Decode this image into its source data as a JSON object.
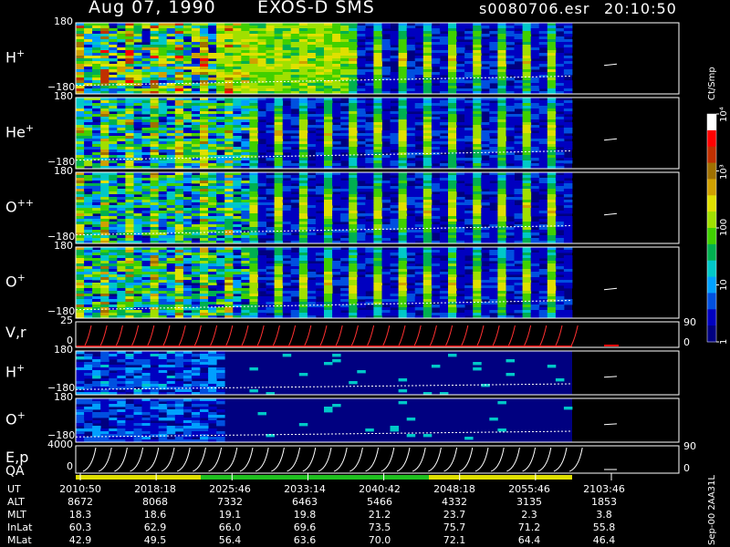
{
  "header": {
    "date": "Aug 07, 1990",
    "instrument": "EXOS-D SMS",
    "file": "s0080706.esr",
    "time": "20:10:50"
  },
  "panels": [
    {
      "id": "h_plus",
      "ion": "H",
      "charge": "+",
      "ytop": "180",
      "ybot": "−180"
    },
    {
      "id": "he_plus",
      "ion": "He",
      "charge": "+",
      "ytop": "180",
      "ybot": "−180"
    },
    {
      "id": "o_pp",
      "ion": "O",
      "charge": "++",
      "ytop": "180",
      "ybot": "−180"
    },
    {
      "id": "o_plus",
      "ion": "O",
      "charge": "+",
      "ytop": "180",
      "ybot": "−180"
    },
    {
      "id": "vr",
      "ion": "V,r",
      "charge": "",
      "ytop": "25",
      "ybot": "0",
      "right_top": "90",
      "right_bot": "0"
    },
    {
      "id": "h_plus2",
      "ion": "H",
      "charge": "+",
      "ytop": "180",
      "ybot": "−180"
    },
    {
      "id": "o_plus2",
      "ion": "O",
      "charge": "+",
      "ytop": "180",
      "ybot": "−180"
    },
    {
      "id": "ep",
      "ion": "E,p",
      "charge": "",
      "ytop": "4000",
      "ybot": "0",
      "right_top": "90",
      "right_bot": "0"
    }
  ],
  "qa_label": "QA",
  "colorbar": {
    "label": "Ct/Smp",
    "ticks": [
      {
        "text": "1",
        "level": 0
      },
      {
        "text": "10",
        "level": 0.25
      },
      {
        "text": "100",
        "level": 0.5
      },
      {
        "text": "10³",
        "level": 0.75
      },
      {
        "text": "10⁴",
        "level": 1.0
      }
    ],
    "colors": [
      "#000080",
      "#0000c0",
      "#0050e0",
      "#00a0ff",
      "#00c8c8",
      "#00b050",
      "#40d000",
      "#a0e000",
      "#e0e000",
      "#d0a000",
      "#a07000",
      "#c03000",
      "#ff0000",
      "#ffffff"
    ]
  },
  "chart_data": {
    "type": "heatmap",
    "title": "Aug 07, 1990   EXOS-D SMS",
    "x_ticks": [
      "2010:50",
      "2018:18",
      "2025:46",
      "2033:14",
      "2040:42",
      "2048:18",
      "2055:46",
      "2103:46"
    ],
    "orbit": {
      "rows": [
        {
          "label": "UT",
          "values": [
            "2010:50",
            "2018:18",
            "2025:46",
            "2033:14",
            "2040:42",
            "2048:18",
            "2055:46",
            "2103:46"
          ]
        },
        {
          "label": "ALT",
          "values": [
            "8672",
            "8068",
            "7332",
            "6463",
            "5466",
            "4332",
            "3135",
            "1853"
          ]
        },
        {
          "label": "MLT",
          "values": [
            "18.3",
            "18.6",
            "19.1",
            "19.8",
            "21.2",
            "23.7",
            "2.3",
            "3.8"
          ]
        },
        {
          "label": "InLat",
          "values": [
            "60.3",
            "62.9",
            "66.0",
            "69.6",
            "73.5",
            "75.7",
            "71.2",
            "55.8"
          ]
        },
        {
          "label": "MLat",
          "values": [
            "42.9",
            "49.5",
            "56.4",
            "63.6",
            "70.0",
            "72.1",
            "64.4",
            "46.4"
          ]
        }
      ]
    }
  },
  "footer_id": "Sep-00  2AA31L"
}
